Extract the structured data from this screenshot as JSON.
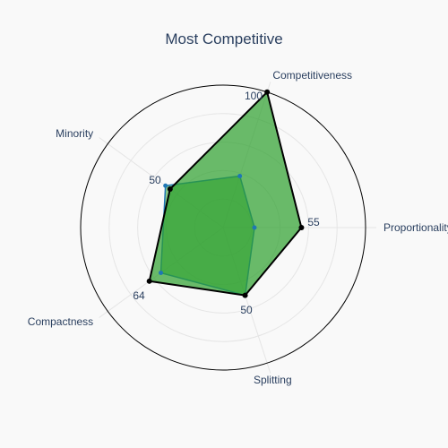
{
  "chart_data": {
    "type": "radar",
    "title": "Most Competitive",
    "axes": [
      "Competitiveness",
      "Proportionality",
      "Splitting",
      "Compactness",
      "Minority"
    ],
    "r_range": [
      0,
      100
    ],
    "grid": true,
    "series": [
      {
        "values": [
          38,
          22,
          50,
          54,
          50
        ],
        "color": "#1f77b4",
        "fill": "#2ca02c",
        "fill_opacity": 0.55
      },
      {
        "values": [
          100,
          55,
          50,
          64,
          46
        ],
        "color": "#000000",
        "fill": "#2ca02c",
        "fill_opacity": 0.7
      }
    ],
    "value_labels": [
      {
        "axis": "Competitiveness",
        "text": "100"
      },
      {
        "axis": "Proportionality",
        "text": "55"
      },
      {
        "axis": "Splitting",
        "text": "50"
      },
      {
        "axis": "Compactness",
        "text": "64"
      },
      {
        "axis": "Minority",
        "text": "50"
      }
    ],
    "colors": {
      "text": "#2a3f5f",
      "grid": "#e5e5e5",
      "outer_ring": "#000000"
    }
  }
}
